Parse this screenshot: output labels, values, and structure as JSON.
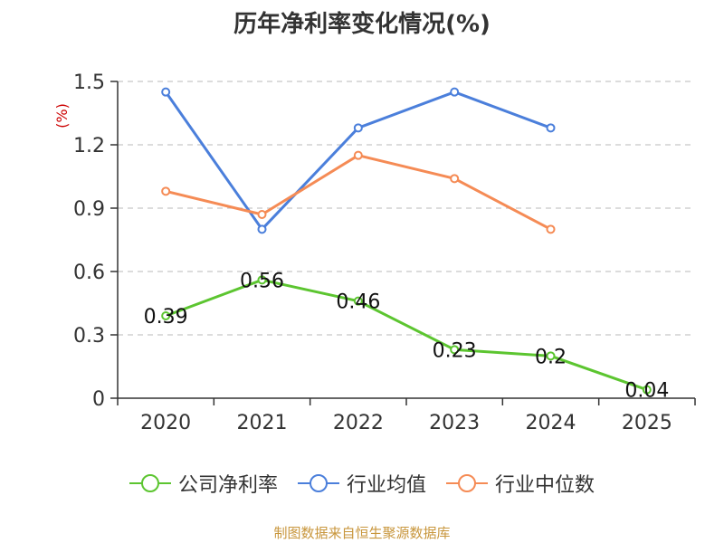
{
  "chart_data": {
    "type": "line",
    "title": "历年净利率变化情况(%)",
    "ylabel": "(%)",
    "xlabel": "",
    "categories": [
      "2020",
      "2021",
      "2022",
      "2023",
      "2024",
      "2025"
    ],
    "ylim": [
      0,
      1.5
    ],
    "yticks": [
      "0",
      "0.3",
      "0.6",
      "0.9",
      "1.2",
      "1.5"
    ],
    "ytick_values": [
      0,
      0.3,
      0.6,
      0.9,
      1.2,
      1.5
    ],
    "grid": true,
    "legend_position": "bottom",
    "series": [
      {
        "name": "公司净利率",
        "color": "#5cc530",
        "values": [
          0.39,
          0.56,
          0.46,
          0.23,
          0.2,
          0.04
        ],
        "labels": [
          "0.39",
          "0.56",
          "0.46",
          "0.23",
          "0.2",
          "0.04"
        ]
      },
      {
        "name": "行业均值",
        "color": "#4b7fdb",
        "values": [
          1.45,
          0.8,
          1.28,
          1.45,
          1.28,
          null
        ]
      },
      {
        "name": "行业中位数",
        "color": "#f58b55",
        "values": [
          0.98,
          0.87,
          1.15,
          1.04,
          0.8,
          null
        ]
      }
    ]
  },
  "footer": "制图数据来自恒生聚源数据库"
}
